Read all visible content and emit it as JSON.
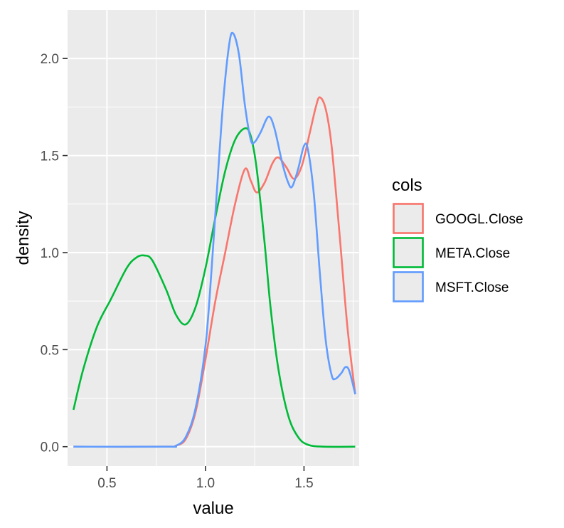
{
  "chart_data": {
    "type": "line",
    "title": "",
    "xlabel": "value",
    "ylabel": "density",
    "xlim": [
      0.3,
      1.78
    ],
    "ylim": [
      -0.1,
      2.25
    ],
    "x_ticks": [
      0.5,
      1.0,
      1.5
    ],
    "x_tick_labels": [
      "0.5",
      "1.0",
      "1.5"
    ],
    "y_ticks": [
      0.0,
      0.5,
      1.0,
      1.5,
      2.0
    ],
    "y_tick_labels": [
      "0.0",
      "0.5",
      "1.0",
      "1.5",
      "2.0"
    ],
    "grid": true,
    "legend": {
      "title": "cols",
      "position": "right"
    },
    "series": [
      {
        "name": "GOOGL.Close",
        "color": "#F8766D",
        "points": [
          [
            0.33,
            0
          ],
          [
            0.8,
            0
          ],
          [
            0.85,
            0.005
          ],
          [
            0.9,
            0.04
          ],
          [
            0.95,
            0.18
          ],
          [
            1.0,
            0.45
          ],
          [
            1.05,
            0.75
          ],
          [
            1.1,
            1.0
          ],
          [
            1.15,
            1.25
          ],
          [
            1.2,
            1.43
          ],
          [
            1.23,
            1.37
          ],
          [
            1.26,
            1.31
          ],
          [
            1.3,
            1.36
          ],
          [
            1.34,
            1.46
          ],
          [
            1.37,
            1.49
          ],
          [
            1.41,
            1.44
          ],
          [
            1.45,
            1.38
          ],
          [
            1.49,
            1.45
          ],
          [
            1.53,
            1.62
          ],
          [
            1.56,
            1.75
          ],
          [
            1.58,
            1.8
          ],
          [
            1.61,
            1.74
          ],
          [
            1.64,
            1.55
          ],
          [
            1.68,
            1.1
          ],
          [
            1.72,
            0.62
          ],
          [
            1.76,
            0.27
          ]
        ]
      },
      {
        "name": "META.Close",
        "color": "#00BA38",
        "points": [
          [
            0.33,
            0.19
          ],
          [
            0.38,
            0.4
          ],
          [
            0.45,
            0.62
          ],
          [
            0.52,
            0.76
          ],
          [
            0.6,
            0.92
          ],
          [
            0.65,
            0.975
          ],
          [
            0.69,
            0.985
          ],
          [
            0.73,
            0.96
          ],
          [
            0.8,
            0.81
          ],
          [
            0.85,
            0.68
          ],
          [
            0.9,
            0.63
          ],
          [
            0.95,
            0.72
          ],
          [
            1.0,
            0.92
          ],
          [
            1.05,
            1.18
          ],
          [
            1.1,
            1.42
          ],
          [
            1.15,
            1.58
          ],
          [
            1.2,
            1.64
          ],
          [
            1.23,
            1.6
          ],
          [
            1.26,
            1.43
          ],
          [
            1.3,
            1.05
          ],
          [
            1.33,
            0.72
          ],
          [
            1.37,
            0.4
          ],
          [
            1.42,
            0.16
          ],
          [
            1.47,
            0.05
          ],
          [
            1.52,
            0.01
          ],
          [
            1.6,
            0.0
          ],
          [
            1.76,
            0.0
          ]
        ]
      },
      {
        "name": "MSFT.Close",
        "color": "#619CFF",
        "points": [
          [
            0.33,
            0
          ],
          [
            0.8,
            0
          ],
          [
            0.85,
            0.005
          ],
          [
            0.9,
            0.05
          ],
          [
            0.95,
            0.2
          ],
          [
            1.0,
            0.52
          ],
          [
            1.03,
            0.9
          ],
          [
            1.06,
            1.35
          ],
          [
            1.09,
            1.78
          ],
          [
            1.12,
            2.07
          ],
          [
            1.14,
            2.13
          ],
          [
            1.17,
            2.02
          ],
          [
            1.2,
            1.76
          ],
          [
            1.23,
            1.58
          ],
          [
            1.25,
            1.57
          ],
          [
            1.28,
            1.62
          ],
          [
            1.32,
            1.7
          ],
          [
            1.35,
            1.64
          ],
          [
            1.39,
            1.46
          ],
          [
            1.42,
            1.36
          ],
          [
            1.44,
            1.34
          ],
          [
            1.47,
            1.43
          ],
          [
            1.5,
            1.55
          ],
          [
            1.52,
            1.53
          ],
          [
            1.55,
            1.3
          ],
          [
            1.58,
            0.9
          ],
          [
            1.61,
            0.55
          ],
          [
            1.64,
            0.37
          ],
          [
            1.66,
            0.35
          ],
          [
            1.69,
            0.38
          ],
          [
            1.71,
            0.41
          ],
          [
            1.73,
            0.39
          ],
          [
            1.76,
            0.27
          ]
        ]
      }
    ]
  }
}
